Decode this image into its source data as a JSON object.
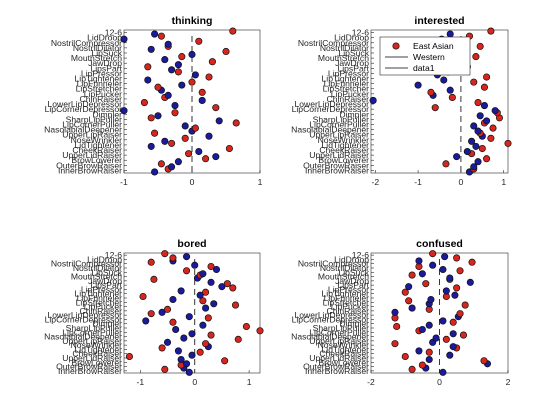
{
  "chart_data": {
    "type": "scatter",
    "ytick_labels": [
      "InnerBrowRaiser",
      "OuterBrowRaiser",
      "BrowLowerer",
      "UpperLidRaiser",
      "CheekRaiser",
      "LidTightener",
      "NoseWrinkler",
      "UpperLipRaiser",
      "NasolabialDeepener",
      "LipCornerPuller",
      "SharpLipPuller",
      "Dimpler",
      "LipCornerDepressor",
      "LowerLipDepressor",
      "ChinRaiser",
      "LipPucker",
      "LipStretcher",
      "LipFunneler",
      "LipTightener",
      "LipPressor",
      "LipsPart",
      "JawDrop",
      "MouthStretch",
      "LipSuck",
      "NostrilDilator",
      "NostrilCompressor",
      "LidDroop",
      "12-6"
    ],
    "legend": [
      {
        "label": "East Asian",
        "color": "#d7261e",
        "marker": "circle"
      },
      {
        "label": "Western",
        "color": "#000000",
        "marker": "line"
      },
      {
        "label": "data1",
        "color": "#000000",
        "marker": "line"
      }
    ],
    "colors": {
      "east_asian": "#d7261e",
      "western": "#1a1a9c"
    },
    "panels": [
      {
        "title": "thinking",
        "xlim": [
          -1,
          1
        ],
        "xticks": [
          "-1",
          "0",
          "1"
        ],
        "series": [
          {
            "name": "East Asian",
            "x": [
              -0.35,
              -0.45,
              0.2,
              -0.05,
              0.55,
              -0.3,
              -0.1,
              -0.55,
              0.05,
              0.65,
              -0.6,
              -0.25,
              0.35,
              -0.7,
              -0.4,
              0.15,
              -0.5,
              0.0,
              0.25,
              -0.2,
              -0.65,
              0.3,
              -0.15,
              0.5,
              -0.35,
              0.1,
              -0.45,
              0.6
            ]
          },
          {
            "name": "Western",
            "x": [
              -0.55,
              -0.3,
              -0.2,
              0.35,
              0.1,
              -0.6,
              -0.4,
              0.25,
              0.0,
              -0.1,
              0.4,
              -0.5,
              -1.0,
              -0.25,
              0.15,
              -0.35,
              -0.45,
              -0.15,
              -0.65,
              0.05,
              -0.3,
              -0.2,
              -0.4,
              0.0,
              -0.6,
              -0.35,
              -1.0,
              -0.55
            ]
          }
        ]
      },
      {
        "title": "interested",
        "xlim": [
          -2.1,
          1.1
        ],
        "xticks": [
          "-2",
          "-1",
          "0",
          "1"
        ],
        "series": [
          {
            "name": "East Asian",
            "x": [
              0.3,
              -0.35,
              0.6,
              0.25,
              0.5,
              1.1,
              0.7,
              0.45,
              0.75,
              0.55,
              0.9,
              0.85,
              -0.6,
              0.4,
              -0.2,
              -0.7,
              0.55,
              0.3,
              0.6,
              -0.3,
              0.15,
              -0.5,
              0.35,
              -0.75,
              0.45,
              -0.2,
              0.2,
              0.7
            ]
          },
          {
            "name": "Western",
            "x": [
              0.2,
              0.3,
              0.4,
              -0.1,
              0.15,
              0.35,
              0.25,
              0.5,
              0.4,
              0.3,
              0.6,
              0.45,
              0.8,
              0.55,
              -2.05,
              -0.65,
              -0.25,
              -1.0,
              -0.4,
              -0.55,
              -0.15,
              -0.8,
              -0.5,
              -0.3,
              -0.35,
              -0.6,
              -0.45,
              -0.25
            ]
          }
        ]
      },
      {
        "title": "bored",
        "xlim": [
          -1.3,
          1.2
        ],
        "xticks": [
          "-1",
          "0",
          "1"
        ],
        "series": [
          {
            "name": "East Asian",
            "x": [
              -0.55,
              -0.25,
              0.55,
              -1.2,
              0.1,
              -0.6,
              0.2,
              0.8,
              0.3,
              1.2,
              0.95,
              -0.4,
              0.25,
              -0.8,
              -0.5,
              0.75,
              0.15,
              -0.95,
              0.2,
              0.7,
              0.6,
              -0.75,
              0.1,
              -0.15,
              0.3,
              -0.8,
              -0.4,
              -0.55
            ]
          },
          {
            "name": "Western",
            "x": [
              -0.1,
              -0.2,
              -0.15,
              -0.25,
              -0.05,
              -0.3,
              0.25,
              -0.5,
              -0.2,
              -0.05,
              -0.35,
              0.15,
              -0.9,
              -0.1,
              -0.6,
              0.2,
              0.35,
              -0.4,
              0.1,
              -0.25,
              0.5,
              0.3,
              0.05,
              0.15,
              0.4,
              0.0,
              -0.4,
              -0.15
            ]
          }
        ]
      },
      {
        "title": "confused",
        "xlim": [
          -2,
          2
        ],
        "xticks": [
          "-2",
          "0",
          "2"
        ],
        "series": [
          {
            "name": "East Asian",
            "x": [
              -0.8,
              -0.5,
              1.3,
              -1.0,
              -0.3,
              0.5,
              -1.3,
              0.2,
              0.7,
              -0.6,
              -1.25,
              0.4,
              -1.3,
              0.6,
              -0.3,
              0.75,
              -0.9,
              0.2,
              -1.0,
              0.5,
              -0.4,
              0.3,
              -0.8,
              0.6,
              -0.6,
              0.95,
              0.5,
              -0.2
            ]
          },
          {
            "name": "Western",
            "x": [
              0.1,
              -0.4,
              1.4,
              -0.3,
              0.3,
              -0.6,
              0.4,
              -0.2,
              -0.1,
              0.4,
              -0.5,
              -0.3,
              0.1,
              0.55,
              -1.3,
              -0.8,
              -0.3,
              -0.25,
              0.45,
              0.2,
              -0.9,
              0.9,
              0.3,
              -0.5,
              0.1,
              -0.2,
              -0.6,
              0.15
            ]
          }
        ]
      }
    ]
  }
}
